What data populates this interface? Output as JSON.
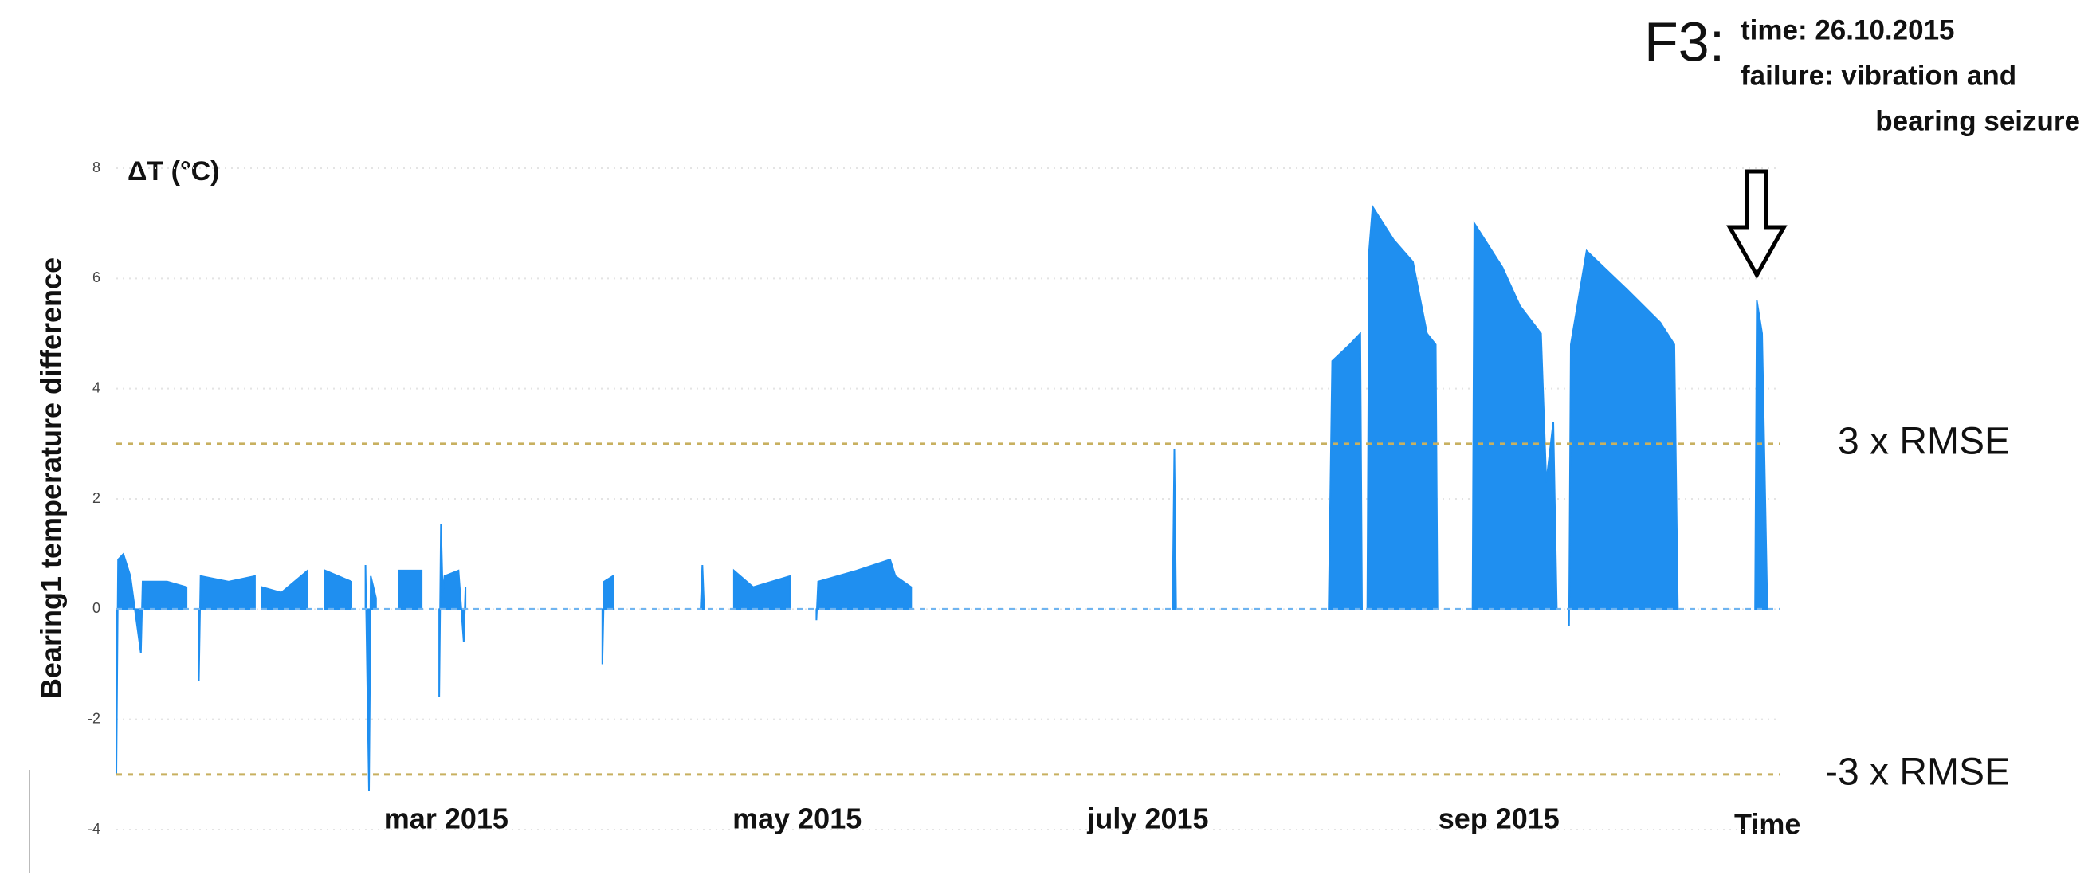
{
  "chart_data": {
    "type": "area",
    "y_label": "Bearing1 temperature difference",
    "y_unit_label": "ΔT (°C)",
    "x_label": "Time",
    "color": "#1f8ff0",
    "grid": true,
    "ylim": [
      -4,
      8
    ],
    "yticks": [
      8,
      6,
      4,
      2,
      0,
      -2,
      -4
    ],
    "xlim": [
      1.12,
      10.6
    ],
    "xticks": [
      {
        "value": 3,
        "label": "mar 2015"
      },
      {
        "value": 5,
        "label": "may 2015"
      },
      {
        "value": 7,
        "label": "july 2015"
      },
      {
        "value": 9,
        "label": "sep 2015"
      }
    ],
    "x": [
      1.12,
      1.13,
      1.16,
      1.2,
      1.26,
      1.27,
      1.41,
      1.52,
      null,
      1.59,
      1.6,
      1.76,
      1.91,
      null,
      1.95,
      2.06,
      2.21,
      null,
      2.31,
      2.46,
      null,
      2.54,
      2.56,
      2.57,
      2.6,
      null,
      2.73,
      2.86,
      null,
      2.96,
      2.97,
      2.98,
      2.99,
      3.07,
      3.1,
      3.11,
      null,
      3.89,
      3.9,
      3.95,
      null,
      4.45,
      4.46,
      4.47,
      null,
      4.64,
      4.75,
      4.96,
      null,
      5.11,
      5.12,
      5.34,
      5.53,
      5.56,
      5.65,
      null,
      7.14,
      7.15,
      7.16,
      null,
      8.03,
      8.05,
      8.15,
      8.21,
      8.22,
      null,
      8.25,
      8.26,
      8.28,
      8.4,
      8.51,
      8.59,
      8.64,
      8.65,
      null,
      8.85,
      8.86,
      9.02,
      9.12,
      9.24,
      9.27,
      9.31,
      9.33,
      null,
      9.4,
      9.41,
      9.5,
      9.73,
      9.92,
      10.0,
      10.02,
      null,
      10.46,
      10.47,
      10.5,
      10.53
    ],
    "values": [
      -3.0,
      0.9,
      1.0,
      0.6,
      -0.8,
      0.5,
      0.5,
      0.4,
      null,
      -1.3,
      0.6,
      0.5,
      0.6,
      null,
      0.4,
      0.3,
      0.7,
      null,
      0.7,
      0.5,
      null,
      0.8,
      -3.3,
      0.6,
      0.2,
      null,
      0.7,
      0.7,
      null,
      -1.6,
      1.55,
      0.3,
      0.6,
      0.7,
      -0.6,
      0.4,
      null,
      -1.0,
      0.5,
      0.6,
      null,
      0,
      0.8,
      0,
      null,
      0.7,
      0.4,
      0.6,
      null,
      -0.2,
      0.5,
      0.7,
      0.9,
      0.6,
      0.4,
      null,
      0,
      2.9,
      0,
      null,
      0,
      4.5,
      4.8,
      5.0,
      0,
      null,
      0,
      6.5,
      7.3,
      6.7,
      6.3,
      5.0,
      4.8,
      0,
      null,
      0,
      7.0,
      6.2,
      5.5,
      5.0,
      2.3,
      3.4,
      0,
      null,
      -0.3,
      4.8,
      6.5,
      5.8,
      5.2,
      4.8,
      0,
      null,
      0,
      5.6,
      5.0,
      0
    ],
    "reference_lines": [
      {
        "value": 3,
        "label": "3 x RMSE",
        "color": "#c8b060"
      },
      {
        "value": -3,
        "label": "-3 x RMSE",
        "color": "#c8b060"
      },
      {
        "value": 0,
        "color": "#6fb4f0"
      }
    ],
    "annotation": {
      "tag": "F3:",
      "lines": [
        "time:  26.10.2015",
        "failure: vibration and",
        "bearing seizure"
      ],
      "x": 10.47
    }
  }
}
